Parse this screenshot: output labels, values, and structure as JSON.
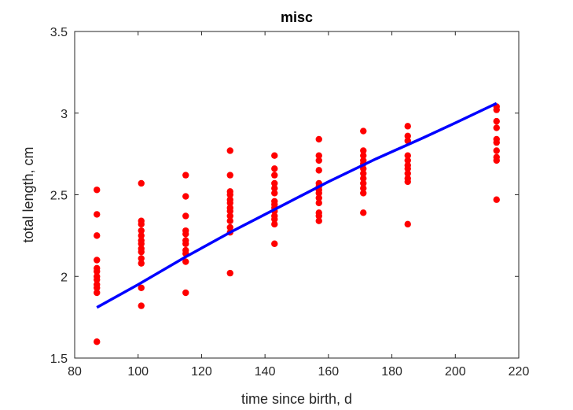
{
  "chart_data": {
    "type": "scatter",
    "title": "misc",
    "xlabel": "time since birth, d",
    "ylabel": "total length, cm",
    "xlim": [
      80,
      220
    ],
    "ylim": [
      1.5,
      3.5
    ],
    "xticks": [
      80,
      100,
      120,
      140,
      160,
      180,
      200,
      220
    ],
    "yticks": [
      1.5,
      2,
      2.5,
      3,
      3.5
    ],
    "xtick_labels": [
      "80",
      "100",
      "120",
      "140",
      "160",
      "180",
      "200",
      "220"
    ],
    "ytick_labels": [
      "1.5",
      "2",
      "2.5",
      "3",
      "3.5"
    ],
    "grid": false,
    "series": [
      {
        "type": "scatter",
        "color": "#ff0000",
        "points": [
          [
            87,
            2.53
          ],
          [
            87,
            2.38
          ],
          [
            87,
            2.25
          ],
          [
            87,
            2.1
          ],
          [
            87,
            2.05
          ],
          [
            87,
            2.03
          ],
          [
            87,
            2.0
          ],
          [
            87,
            1.98
          ],
          [
            87,
            1.95
          ],
          [
            87,
            1.93
          ],
          [
            87,
            1.9
          ],
          [
            87,
            1.6
          ],
          [
            101,
            2.57
          ],
          [
            101,
            2.34
          ],
          [
            101,
            2.32
          ],
          [
            101,
            2.28
          ],
          [
            101,
            2.25
          ],
          [
            101,
            2.22
          ],
          [
            101,
            2.2
          ],
          [
            101,
            2.17
          ],
          [
            101,
            2.15
          ],
          [
            101,
            2.11
          ],
          [
            101,
            2.08
          ],
          [
            101,
            1.93
          ],
          [
            101,
            1.82
          ],
          [
            115,
            2.62
          ],
          [
            115,
            2.49
          ],
          [
            115,
            2.37
          ],
          [
            115,
            2.28
          ],
          [
            115,
            2.26
          ],
          [
            115,
            2.22
          ],
          [
            115,
            2.2
          ],
          [
            115,
            2.16
          ],
          [
            115,
            2.14
          ],
          [
            115,
            2.09
          ],
          [
            115,
            1.9
          ],
          [
            129,
            2.77
          ],
          [
            129,
            2.62
          ],
          [
            129,
            2.52
          ],
          [
            129,
            2.5
          ],
          [
            129,
            2.47
          ],
          [
            129,
            2.45
          ],
          [
            129,
            2.42
          ],
          [
            129,
            2.4
          ],
          [
            129,
            2.37
          ],
          [
            129,
            2.34
          ],
          [
            129,
            2.3
          ],
          [
            129,
            2.27
          ],
          [
            129,
            2.02
          ],
          [
            143,
            2.74
          ],
          [
            143,
            2.66
          ],
          [
            143,
            2.62
          ],
          [
            143,
            2.57
          ],
          [
            143,
            2.54
          ],
          [
            143,
            2.51
          ],
          [
            143,
            2.46
          ],
          [
            143,
            2.44
          ],
          [
            143,
            2.42
          ],
          [
            143,
            2.4
          ],
          [
            143,
            2.37
          ],
          [
            143,
            2.35
          ],
          [
            143,
            2.32
          ],
          [
            143,
            2.2
          ],
          [
            157,
            2.84
          ],
          [
            157,
            2.74
          ],
          [
            157,
            2.71
          ],
          [
            157,
            2.65
          ],
          [
            157,
            2.57
          ],
          [
            157,
            2.55
          ],
          [
            157,
            2.53
          ],
          [
            157,
            2.51
          ],
          [
            157,
            2.48
          ],
          [
            157,
            2.45
          ],
          [
            157,
            2.39
          ],
          [
            157,
            2.37
          ],
          [
            157,
            2.34
          ],
          [
            171,
            2.89
          ],
          [
            171,
            2.77
          ],
          [
            171,
            2.74
          ],
          [
            171,
            2.71
          ],
          [
            171,
            2.69
          ],
          [
            171,
            2.66
          ],
          [
            171,
            2.63
          ],
          [
            171,
            2.6
          ],
          [
            171,
            2.57
          ],
          [
            171,
            2.54
          ],
          [
            171,
            2.51
          ],
          [
            171,
            2.39
          ],
          [
            185,
            2.92
          ],
          [
            185,
            2.86
          ],
          [
            185,
            2.83
          ],
          [
            185,
            2.74
          ],
          [
            185,
            2.71
          ],
          [
            185,
            2.68
          ],
          [
            185,
            2.66
          ],
          [
            185,
            2.63
          ],
          [
            185,
            2.6
          ],
          [
            185,
            2.58
          ],
          [
            185,
            2.32
          ],
          [
            213,
            3.04
          ],
          [
            213,
            3.02
          ],
          [
            213,
            2.95
          ],
          [
            213,
            2.91
          ],
          [
            213,
            2.84
          ],
          [
            213,
            2.82
          ],
          [
            213,
            2.77
          ],
          [
            213,
            2.73
          ],
          [
            213,
            2.71
          ],
          [
            213,
            2.47
          ]
        ]
      },
      {
        "type": "line",
        "color": "#0000ff",
        "x": [
          87,
          100,
          115,
          130,
          145,
          160,
          175,
          190,
          200,
          213
        ],
        "y": [
          1.81,
          1.95,
          2.12,
          2.28,
          2.43,
          2.58,
          2.72,
          2.85,
          2.94,
          3.06
        ]
      }
    ]
  }
}
